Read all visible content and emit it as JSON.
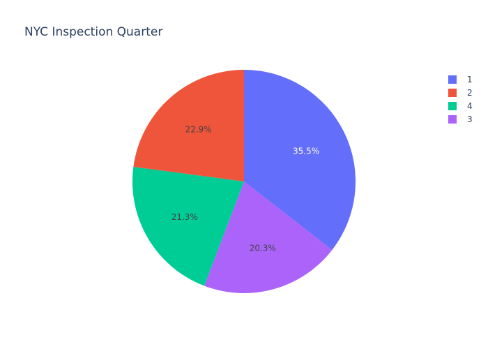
{
  "chart_data": {
    "type": "pie",
    "title": "NYC Inspection Quarter",
    "slices": [
      {
        "label": "1",
        "percent": 35.5,
        "percent_text": "35.5%",
        "color": "#636efa",
        "text_color": "#ffffff"
      },
      {
        "label": "3",
        "percent": 20.3,
        "percent_text": "20.3%",
        "color": "#ab63fa",
        "text_color": "#444444"
      },
      {
        "label": "4",
        "percent": 21.3,
        "percent_text": "21.3%",
        "color": "#00cc96",
        "text_color": "#444444"
      },
      {
        "label": "2",
        "percent": 22.9,
        "percent_text": "22.9%",
        "color": "#ef553b",
        "text_color": "#444444"
      }
    ],
    "legend": {
      "placement": "top-right",
      "order": [
        "1",
        "2",
        "4",
        "3"
      ]
    }
  }
}
